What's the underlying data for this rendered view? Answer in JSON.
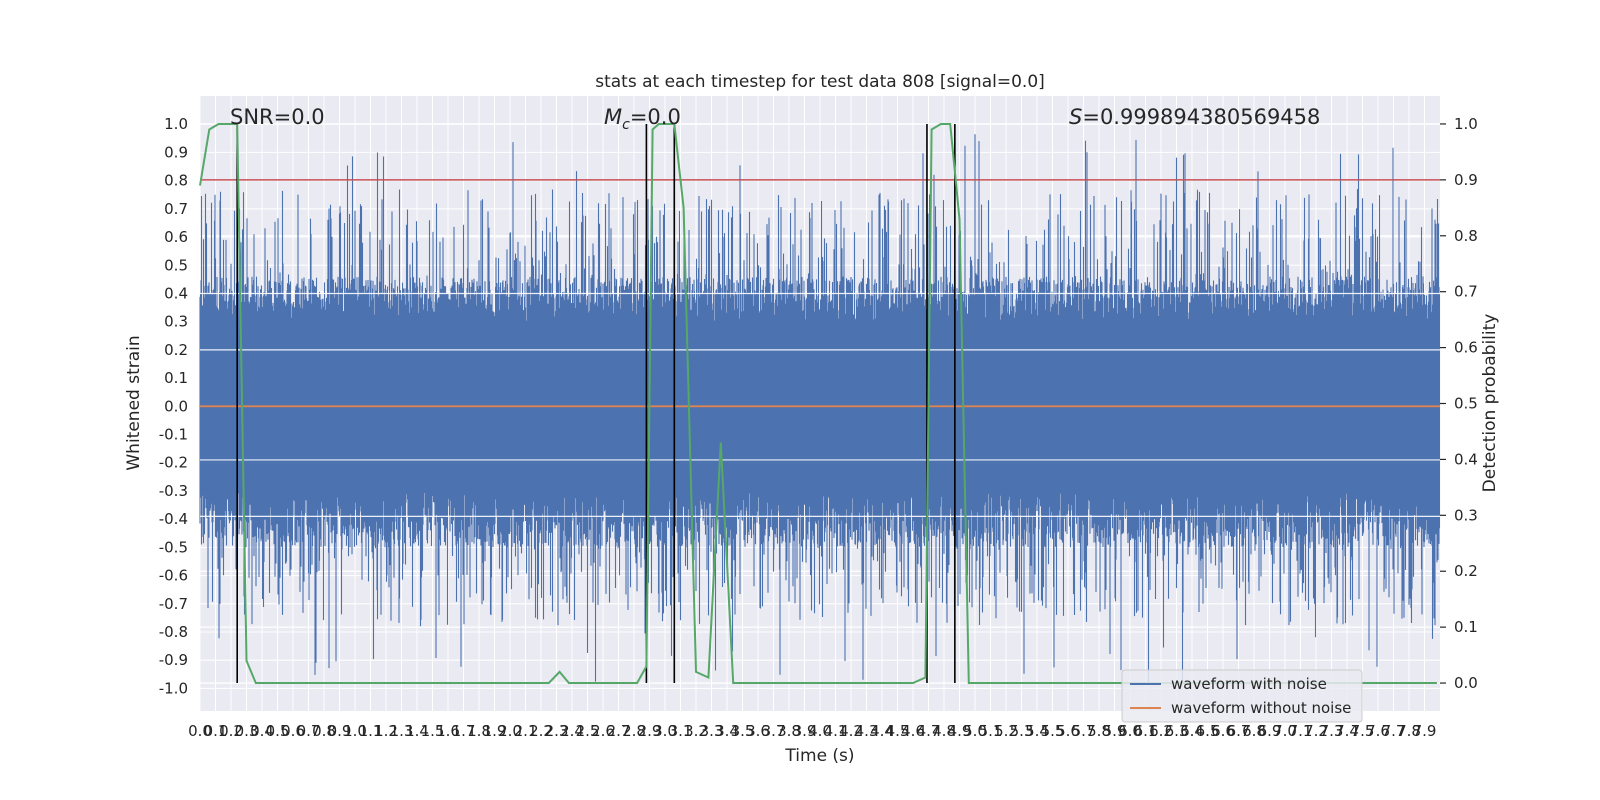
{
  "chart_data": {
    "type": "line",
    "title": "stats at each timestep for test data 808 [signal=0.0]",
    "xlabel": "Time (s)",
    "ylabel": "Whitened strain",
    "ylabel_right": "Detection probability",
    "xlim": [
      0.0,
      8.0
    ],
    "ylim": [
      -1.08,
      1.1
    ],
    "ylim_right": [
      -0.05,
      1.05
    ],
    "x_ticks": [
      "0.0",
      "0.1",
      "0.2",
      "0.3",
      "0.4",
      "0.5",
      "0.6",
      "0.7",
      "0.8",
      "0.9",
      "1.0",
      "1.1",
      "1.2",
      "1.3",
      "1.4",
      "1.5",
      "1.6",
      "1.7",
      "1.8",
      "1.9",
      "2.0",
      "2.1",
      "2.2",
      "2.3",
      "2.4",
      "2.5",
      "2.6",
      "2.7",
      "2.8",
      "2.9",
      "3.0",
      "3.1",
      "3.2",
      "3.3",
      "3.4",
      "3.5",
      "3.6",
      "3.7",
      "3.8",
      "3.9",
      "4.0",
      "4.1",
      "4.2",
      "4.3",
      "4.4",
      "4.5",
      "4.6",
      "4.7",
      "4.8",
      "4.9",
      "5.0",
      "5.1",
      "5.2",
      "5.3",
      "5.4",
      "5.5",
      "5.6",
      "5.7",
      "5.8",
      "5.9",
      "6.0",
      "6.1",
      "6.2",
      "6.3",
      "6.4",
      "6.5",
      "6.6",
      "6.7",
      "6.8",
      "6.9",
      "7.0",
      "7.1",
      "7.2",
      "7.3",
      "7.4",
      "7.5",
      "7.6",
      "7.7",
      "7.8",
      "7.9"
    ],
    "y_ticks": [
      "1.0",
      "0.9",
      "0.8",
      "0.7",
      "0.6",
      "0.5",
      "0.4",
      "0.3",
      "0.2",
      "0.1",
      "0.0",
      "-0.1",
      "-0.2",
      "-0.3",
      "-0.4",
      "-0.5",
      "-0.6",
      "-0.7",
      "-0.8",
      "-0.9",
      "-1.0"
    ],
    "y_ticks_right": [
      "1.0",
      "0.9",
      "0.8",
      "0.7",
      "0.6",
      "0.5",
      "0.4",
      "0.3",
      "0.2",
      "0.1",
      "0.0"
    ],
    "threshold": {
      "value": 0.9,
      "axis": "right",
      "color": "#c44e52"
    },
    "detection_probability": {
      "color": "#55a868",
      "points": [
        [
          0.0,
          0.89
        ],
        [
          0.06,
          0.99
        ],
        [
          0.12,
          1.0
        ],
        [
          0.24,
          1.0
        ],
        [
          0.3,
          0.04
        ],
        [
          0.36,
          0.0
        ],
        [
          1.0,
          0.0
        ],
        [
          2.0,
          0.0
        ],
        [
          2.25,
          0.0
        ],
        [
          2.32,
          0.02
        ],
        [
          2.38,
          0.0
        ],
        [
          2.5,
          0.0
        ],
        [
          2.82,
          0.0
        ],
        [
          2.88,
          0.03
        ],
        [
          2.92,
          0.99
        ],
        [
          2.96,
          1.0
        ],
        [
          3.06,
          1.0
        ],
        [
          3.12,
          0.85
        ],
        [
          3.2,
          0.02
        ],
        [
          3.28,
          0.01
        ],
        [
          3.36,
          0.43
        ],
        [
          3.44,
          0.0
        ],
        [
          4.0,
          0.0
        ],
        [
          4.1,
          0.0
        ],
        [
          4.2,
          0.0
        ],
        [
          4.6,
          0.0
        ],
        [
          4.68,
          0.01
        ],
        [
          4.72,
          0.99
        ],
        [
          4.78,
          1.0
        ],
        [
          4.84,
          1.0
        ],
        [
          4.9,
          0.83
        ],
        [
          4.96,
          0.0
        ],
        [
          5.2,
          0.0
        ],
        [
          5.3,
          0.0
        ],
        [
          5.5,
          0.0
        ],
        [
          6.5,
          0.0
        ],
        [
          7.4,
          0.0
        ],
        [
          7.98,
          0.0
        ]
      ]
    },
    "event_markers": {
      "color": "#000000",
      "x": [
        0.24,
        2.88,
        3.06,
        4.69,
        4.87
      ]
    },
    "series": [
      {
        "name": "waveform with noise",
        "color": "#4c72b0",
        "style": "noise",
        "amplitude": [
          -0.98,
          0.98
        ]
      },
      {
        "name": "waveform without noise",
        "color": "#dd8452",
        "values": [
          0.0
        ]
      }
    ],
    "annotations": {
      "snr": "SNR=0.0",
      "mc_symbol": "M",
      "mc_sub": "c",
      "mc_value": "=0.0",
      "s_symbol": "S",
      "s_value": "=0.999894380569458"
    },
    "legend": {
      "placement": "lower-right"
    },
    "grid": true,
    "background": "#eaeaf2"
  }
}
